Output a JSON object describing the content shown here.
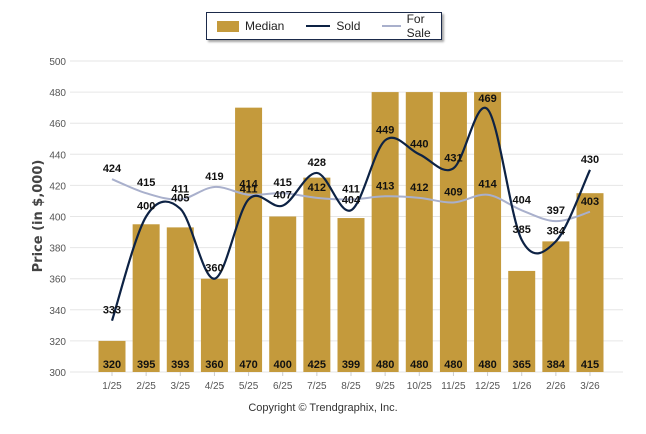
{
  "legend": {
    "median_label": "Median",
    "sold_label": "Sold",
    "for_sale_label": "For Sale"
  },
  "colors": {
    "median": "#c49a3c",
    "sold": "#0d2244",
    "for_sale": "#a9b0cc",
    "grid": "#e6e6e6"
  },
  "footer": {
    "copyright": "Copyright © Trendgraphix, Inc."
  },
  "chart_data": {
    "type": "bar",
    "title": "",
    "xlabel": "",
    "ylabel": "Price (in $,000)",
    "ylim": [
      300,
      500
    ],
    "yticks": [
      300,
      320,
      340,
      360,
      380,
      400,
      420,
      440,
      460,
      480,
      500
    ],
    "grid": true,
    "legend_position": "top-center",
    "categories": [
      "1/25",
      "2/25",
      "3/25",
      "4/25",
      "5/25",
      "6/25",
      "7/25",
      "8/25",
      "9/25",
      "10/25",
      "11/25",
      "12/25",
      "1/26",
      "2/26",
      "3/26"
    ],
    "series": [
      {
        "name": "Median",
        "kind": "bar",
        "values": [
          320,
          395,
          393,
          360,
          470,
          400,
          425,
          399,
          480,
          480,
          480,
          480,
          365,
          384,
          415
        ]
      },
      {
        "name": "Sold",
        "kind": "line",
        "values": [
          333,
          400,
          405,
          360,
          411,
          407,
          428,
          404,
          449,
          440,
          431,
          469,
          385,
          384,
          430
        ]
      },
      {
        "name": "For Sale",
        "kind": "line",
        "values": [
          424,
          415,
          411,
          419,
          414,
          415,
          412,
          411,
          413,
          412,
          409,
          414,
          404,
          397,
          403
        ]
      }
    ]
  }
}
